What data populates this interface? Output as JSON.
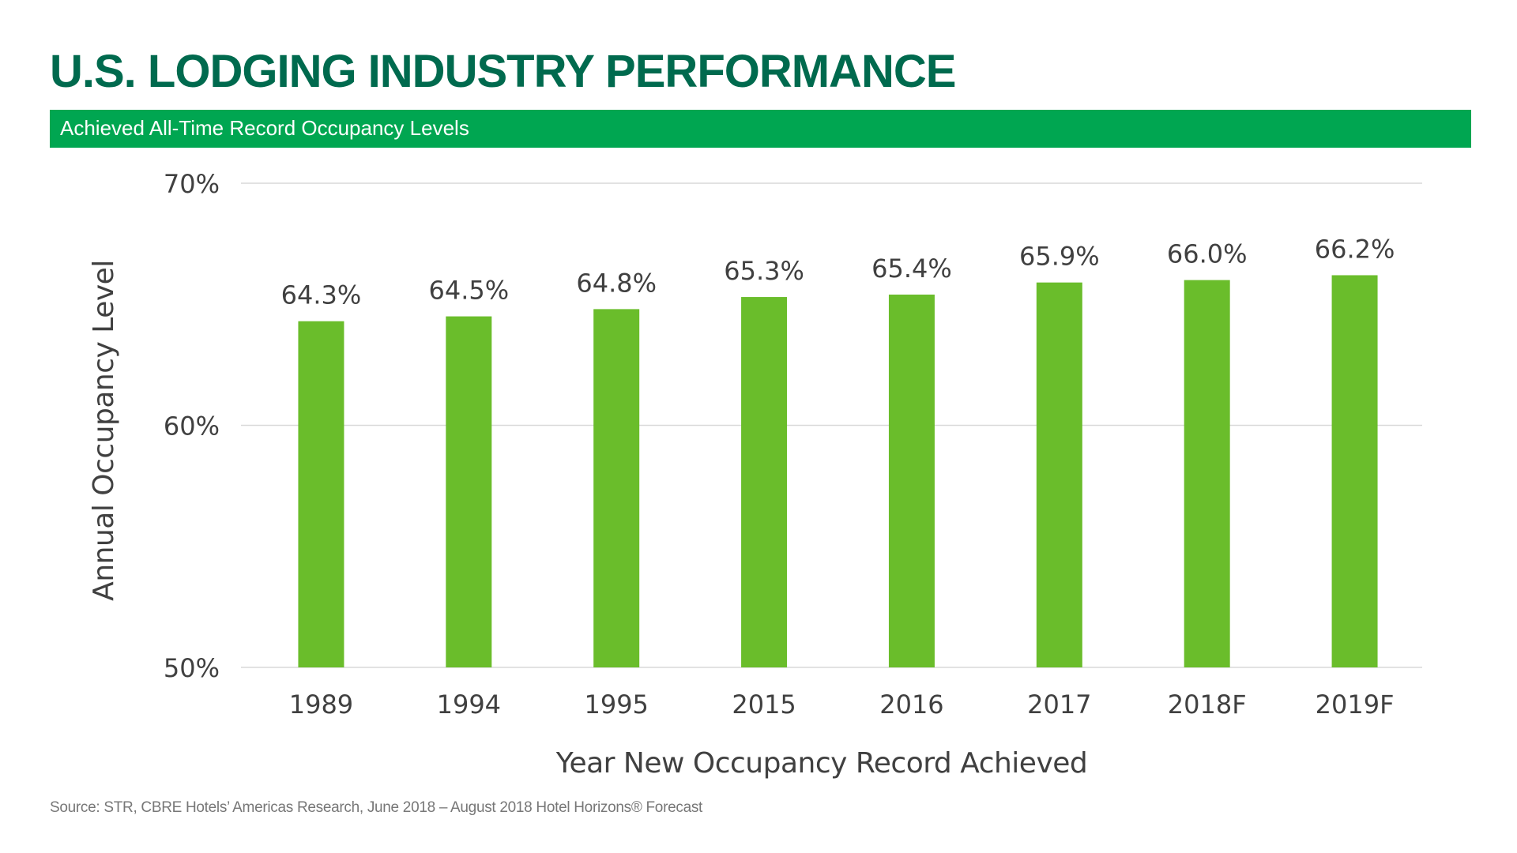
{
  "header": {
    "title": "U.S. LODGING INDUSTRY PERFORMANCE",
    "subtitle": "Achieved All-Time Record Occupancy Levels"
  },
  "footer": {
    "source": "Source: STR, CBRE Hotels’ Americas Research, June 2018 – August 2018 Hotel Horizons® Forecast"
  },
  "colors": {
    "title": "#006a4e",
    "banner": "#00a651",
    "bar": "#6abd2b",
    "grid": "#d9d9d9",
    "text": "#404040"
  },
  "chart_data": {
    "type": "bar",
    "categories": [
      "1989",
      "1994",
      "1995",
      "2015",
      "2016",
      "2017",
      "2018F",
      "2019F"
    ],
    "values": [
      64.3,
      64.5,
      64.8,
      65.3,
      65.4,
      65.9,
      66.0,
      66.2
    ],
    "data_labels": [
      "64.3%",
      "64.5%",
      "64.8%",
      "65.3%",
      "65.4%",
      "65.9%",
      "66.0%",
      "66.2%"
    ],
    "ylim": [
      50,
      70
    ],
    "yticks": [
      50,
      60,
      70
    ],
    "ytick_labels": [
      "50%",
      "60%",
      "70%"
    ],
    "xlabel": "Year New Occupancy Record Achieved",
    "ylabel": "Annual Occupancy Level",
    "grid": true,
    "legend": "none"
  }
}
